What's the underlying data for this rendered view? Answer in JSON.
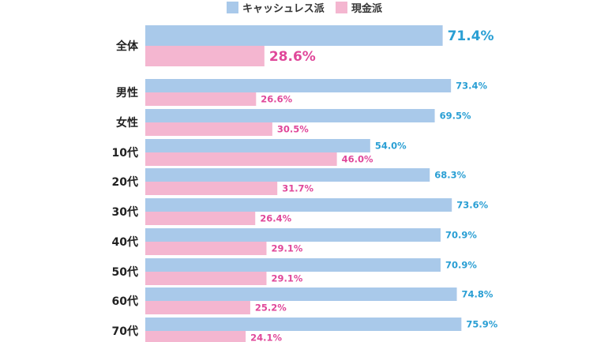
{
  "chart_data": {
    "type": "bar",
    "orientation": "horizontal",
    "categories": [
      "全体",
      "男性",
      "女性",
      "10代",
      "20代",
      "30代",
      "40代",
      "50代",
      "60代",
      "70代"
    ],
    "series": [
      {
        "name": "キャッシュレス派",
        "color": "#a9c9ea",
        "label_color": "#2a9fd4",
        "values": [
          71.4,
          73.4,
          69.5,
          54.0,
          68.3,
          73.6,
          70.9,
          70.9,
          74.8,
          75.9
        ],
        "labels": [
          "71.4%",
          "73.4%",
          "69.5%",
          "54.0%",
          "68.3%",
          "73.6%",
          "70.9%",
          "70.9%",
          "74.8%",
          "75.9%"
        ]
      },
      {
        "name": "現金派",
        "color": "#f4b6d0",
        "label_color": "#e0489a",
        "values": [
          28.6,
          26.6,
          30.5,
          46.0,
          31.7,
          26.4,
          29.1,
          29.1,
          25.2,
          24.1
        ],
        "labels": [
          "28.6%",
          "26.6%",
          "30.5%",
          "46.0%",
          "31.7%",
          "26.4%",
          "29.1%",
          "29.1%",
          "25.2%",
          "24.1%"
        ]
      }
    ],
    "xlim": [
      0,
      100
    ],
    "grid": false,
    "legend_position": "top-center"
  }
}
